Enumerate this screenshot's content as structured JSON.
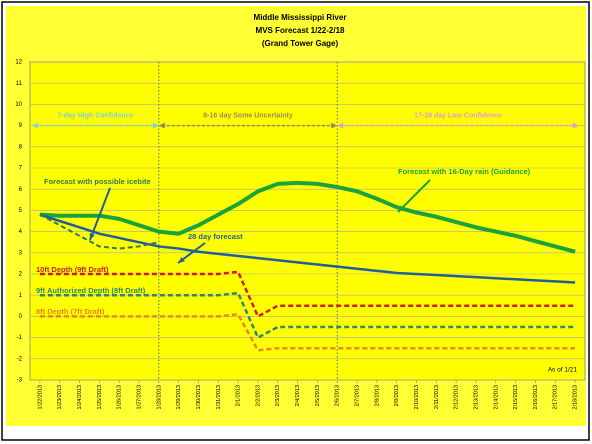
{
  "chart_data": {
    "type": "line",
    "title": [
      "Middle Mississippi River",
      "MVS Forecast 1/22-2/18",
      "(Grand Tower Gage)"
    ],
    "categories": [
      "1/22/2013",
      "1/23/2013",
      "1/24/2013",
      "1/25/2013",
      "1/26/2013",
      "1/27/2013",
      "1/28/2013",
      "1/29/2013",
      "1/30/2013",
      "1/31/2013",
      "2/1/2013",
      "2/2/2013",
      "2/3/2013",
      "2/4/2013",
      "2/5/2013",
      "2/6/2013",
      "2/7/2013",
      "2/8/2013",
      "2/9/2013",
      "2/10/2013",
      "2/11/2013",
      "2/12/2013",
      "2/13/2013",
      "2/14/2013",
      "2/15/2013",
      "2/16/2013",
      "2/17/2013",
      "2/18/2013"
    ],
    "ylim": [
      -3,
      12
    ],
    "yticks": [
      -3,
      -2,
      -1,
      0,
      1,
      2,
      3,
      4,
      5,
      6,
      7,
      8,
      9,
      10,
      11,
      12
    ],
    "grid": true,
    "series": [
      {
        "name": "Forecast with 16-Day rain (Guidance)",
        "color": "#1aa33a",
        "dash": false,
        "width": 4,
        "values": [
          4.8,
          4.75,
          4.75,
          4.75,
          4.6,
          4.3,
          4.0,
          3.9,
          4.3,
          4.8,
          5.3,
          5.9,
          6.25,
          6.3,
          6.25,
          6.1,
          5.9,
          5.55,
          5.15,
          4.9,
          4.7,
          4.45,
          4.2,
          4.0,
          3.8,
          3.55,
          3.3,
          3.05
        ]
      },
      {
        "name": "28 day forecast",
        "color": "#1f5f9a",
        "dash": false,
        "width": 2.5,
        "values": [
          4.8,
          4.5,
          4.2,
          3.9,
          3.7,
          3.5,
          3.3,
          3.2,
          3.05,
          2.95,
          2.85,
          2.75,
          2.65,
          2.55,
          2.45,
          2.35,
          2.25,
          2.15,
          2.05,
          2.0,
          1.95,
          1.9,
          1.85,
          1.8,
          1.75,
          1.7,
          1.65,
          1.6
        ]
      },
      {
        "name": "Forecast with possible icebite",
        "color": "#2e7d4f",
        "dash": true,
        "width": 2,
        "values": [
          4.8,
          4.3,
          3.8,
          3.3,
          3.2,
          3.3,
          3.5,
          null,
          null,
          null,
          null,
          null,
          null,
          null,
          null,
          null,
          null,
          null,
          null,
          null,
          null,
          null,
          null,
          null,
          null,
          null,
          null,
          null
        ]
      },
      {
        "name": "10ft Depth (9ft Draft)",
        "color": "#cc1f1a",
        "dash": true,
        "width": 2.5,
        "values": [
          2,
          2,
          2,
          2,
          2,
          2,
          2,
          2,
          2,
          2,
          2.1,
          0.0,
          0.5,
          0.5,
          0.5,
          0.5,
          0.5,
          0.5,
          0.5,
          0.5,
          0.5,
          0.5,
          0.5,
          0.5,
          0.5,
          0.5,
          0.5,
          0.5
        ]
      },
      {
        "name": "9ft Authorized Depth (8ft Draft)",
        "color": "#2a8a6a",
        "dash": true,
        "width": 2.5,
        "values": [
          1,
          1,
          1,
          1,
          1,
          1,
          1,
          1,
          1,
          1,
          1.1,
          -1.0,
          -0.5,
          -0.5,
          -0.5,
          -0.5,
          -0.5,
          -0.5,
          -0.5,
          -0.5,
          -0.5,
          -0.5,
          -0.5,
          -0.5,
          -0.5,
          -0.5,
          -0.5,
          -0.5
        ]
      },
      {
        "name": "8ft Depth (7ft Draft)",
        "color": "#e8891a",
        "dash": true,
        "width": 2.5,
        "values": [
          0,
          0,
          0,
          0,
          0,
          0,
          0,
          0,
          0,
          0,
          0.1,
          -1.6,
          -1.5,
          -1.5,
          -1.5,
          -1.5,
          -1.5,
          -1.5,
          -1.5,
          -1.5,
          -1.5,
          -1.5,
          -1.5,
          -1.5,
          -1.5,
          -1.5,
          -1.5,
          -1.5
        ]
      }
    ],
    "zones": [
      {
        "text": "7-day High Confidence",
        "color": "#7fd0d8"
      },
      {
        "text": "8-16 day Some Uncertainty",
        "color": "#9a8a50"
      },
      {
        "text": "17-28 day Low Confidence",
        "color": "#e59ad0"
      }
    ],
    "note": "As of 1/21"
  }
}
